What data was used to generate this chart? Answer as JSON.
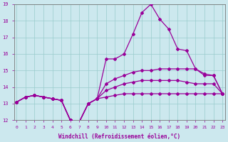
{
  "xlabel": "Windchill (Refroidissement éolien,°C)",
  "background_color": "#cce8ee",
  "line_color": "#990099",
  "grid_color": "#99cccc",
  "xlim_min": -0.3,
  "xlim_max": 23.3,
  "ylim_min": 12,
  "ylim_max": 19,
  "xticks": [
    0,
    1,
    2,
    3,
    4,
    5,
    6,
    7,
    8,
    9,
    10,
    11,
    12,
    13,
    14,
    15,
    16,
    17,
    18,
    19,
    20,
    21,
    22,
    23
  ],
  "yticks": [
    12,
    13,
    14,
    15,
    16,
    17,
    18,
    19
  ],
  "curve_spike": [
    13.1,
    13.4,
    13.5,
    13.4,
    13.3,
    13.2,
    12.0,
    11.9,
    13.0,
    13.3,
    15.7,
    15.7,
    16.0,
    17.2,
    18.5,
    19.0,
    18.1,
    17.5,
    16.3,
    16.2,
    15.1,
    14.7,
    14.7,
    13.6
  ],
  "curve_upper": [
    13.1,
    13.4,
    13.5,
    13.4,
    13.3,
    13.2,
    12.0,
    11.9,
    13.0,
    13.3,
    14.2,
    14.5,
    14.7,
    14.9,
    15.0,
    15.0,
    15.1,
    15.1,
    15.1,
    15.1,
    15.1,
    14.8,
    14.7,
    13.6
  ],
  "curve_mid": [
    13.1,
    13.4,
    13.5,
    13.4,
    13.3,
    13.2,
    12.0,
    11.9,
    13.0,
    13.3,
    13.8,
    14.0,
    14.2,
    14.3,
    14.4,
    14.4,
    14.4,
    14.4,
    14.4,
    14.3,
    14.2,
    14.2,
    14.2,
    13.6
  ],
  "curve_flat": [
    13.1,
    13.4,
    13.5,
    13.4,
    13.3,
    13.2,
    12.0,
    11.9,
    13.0,
    13.3,
    13.4,
    13.5,
    13.6,
    13.6,
    13.6,
    13.6,
    13.6,
    13.6,
    13.6,
    13.6,
    13.6,
    13.6,
    13.6,
    13.6
  ]
}
